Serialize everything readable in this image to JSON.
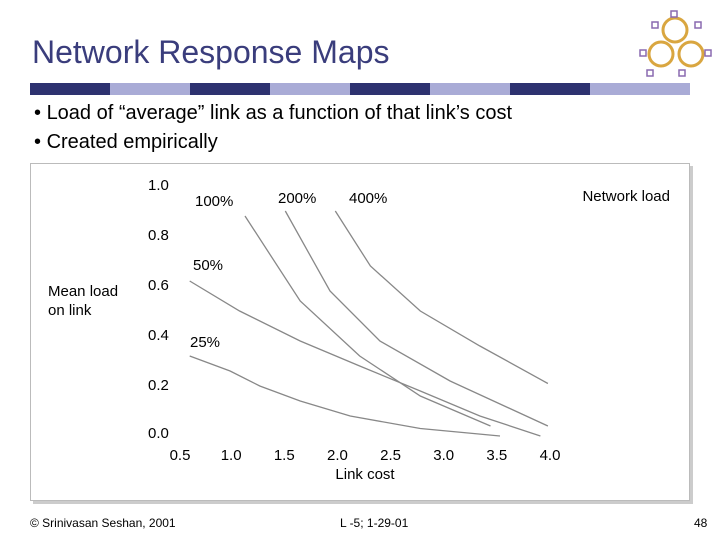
{
  "title": "Network Response Maps",
  "bullets": [
    "Load of “average” link as a function of that link’s cost",
    "Created empirically"
  ],
  "footer": {
    "left": "© Srinivasan Seshan, 2001",
    "center": "L -5; 1-29-01",
    "page": "48"
  },
  "chart_data": {
    "type": "line",
    "x_label": "Link cost",
    "y_label": "Mean load on link",
    "annotation": "Network load",
    "xlim": [
      0.5,
      4.0
    ],
    "ylim": [
      0,
      1
    ],
    "xticks": [
      0.5,
      {
        "value": 1,
        "label": "1.0"
      },
      1.5,
      {
        "value": 2,
        "label": "2.0"
      },
      2.5,
      {
        "value": 3,
        "label": "3.0"
      },
      3.5,
      {
        "value": 4,
        "label": "4.0"
      }
    ],
    "yticks": [
      {
        "value": 0,
        "label": "0.0"
      },
      0.2,
      0.4,
      0.6,
      0.8,
      {
        "value": 1,
        "label": "1.0"
      }
    ],
    "series": [
      {
        "name": "25%",
        "color": "#888888",
        "x": [
          0.61,
          0.99,
          1.27,
          1.65,
          2.12,
          2.78,
          3.53
        ],
        "values": [
          0.32,
          0.26,
          0.2,
          0.14,
          0.08,
          0.03,
          0.0
        ]
      },
      {
        "name": "50%",
        "color": "#888888",
        "x": [
          0.61,
          1.08,
          1.65,
          2.21,
          2.78,
          3.34,
          3.91
        ],
        "values": [
          0.62,
          0.5,
          0.38,
          0.28,
          0.18,
          0.08,
          0.0
        ]
      },
      {
        "name": "100%",
        "color": "#888888",
        "x": [
          1.13,
          1.65,
          2.21,
          2.78,
          3.44
        ],
        "values": [
          0.88,
          0.54,
          0.32,
          0.16,
          0.04
        ]
      },
      {
        "name": "200%",
        "color": "#888888",
        "x": [
          1.51,
          1.93,
          2.4,
          3.06,
          3.98
        ],
        "values": [
          0.9,
          0.58,
          0.38,
          0.22,
          0.04
        ]
      },
      {
        "name": "400%",
        "color": "#888888",
        "x": [
          1.98,
          2.31,
          2.78,
          3.34,
          3.98
        ],
        "values": [
          0.9,
          0.68,
          0.5,
          0.36,
          0.21
        ]
      }
    ]
  }
}
